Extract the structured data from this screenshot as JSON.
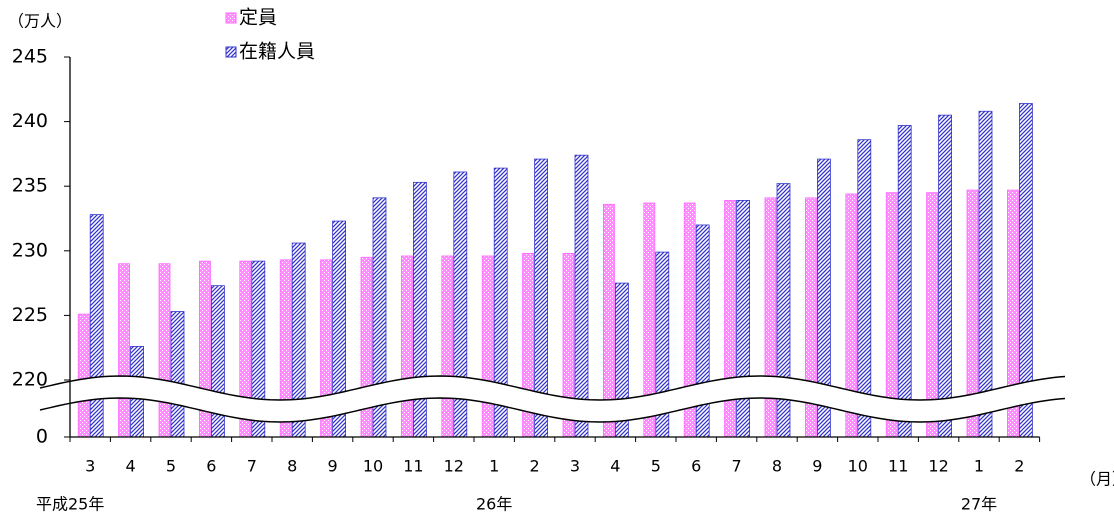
{
  "chart_data": {
    "type": "bar",
    "unit_label": "（万人）",
    "x_unit_label": "（月）",
    "categories": [
      "3",
      "4",
      "5",
      "6",
      "7",
      "8",
      "9",
      "10",
      "11",
      "12",
      "1",
      "2",
      "3",
      "4",
      "5",
      "6",
      "7",
      "8",
      "9",
      "10",
      "11",
      "12",
      "1",
      "2"
    ],
    "year_categories": [
      "平成25年",
      null,
      null,
      null,
      null,
      null,
      null,
      null,
      null,
      null,
      "26年",
      null,
      null,
      null,
      null,
      null,
      null,
      null,
      null,
      null,
      null,
      null,
      "27年",
      null
    ],
    "series": [
      {
        "name": "定員",
        "color": "#ff66ff",
        "values": [
          225.1,
          229.0,
          229.0,
          229.2,
          229.2,
          229.3,
          229.3,
          229.5,
          229.6,
          229.6,
          229.6,
          229.8,
          229.8,
          233.6,
          233.7,
          233.7,
          233.9,
          234.1,
          234.1,
          234.4,
          234.5,
          234.5,
          234.7,
          234.7
        ]
      },
      {
        "name": "在籍人員",
        "color": "#3333cc",
        "values": [
          232.8,
          222.6,
          225.3,
          227.3,
          229.2,
          230.6,
          232.3,
          234.1,
          235.3,
          236.1,
          236.4,
          237.1,
          237.4,
          227.5,
          229.9,
          232.0,
          233.9,
          235.2,
          237.1,
          238.6,
          239.7,
          240.5,
          240.8,
          241.4
        ]
      }
    ],
    "ylim": [
      0,
      245
    ],
    "yticks": [
      0,
      220,
      225,
      230,
      235,
      240,
      245
    ],
    "axis_break": true
  }
}
